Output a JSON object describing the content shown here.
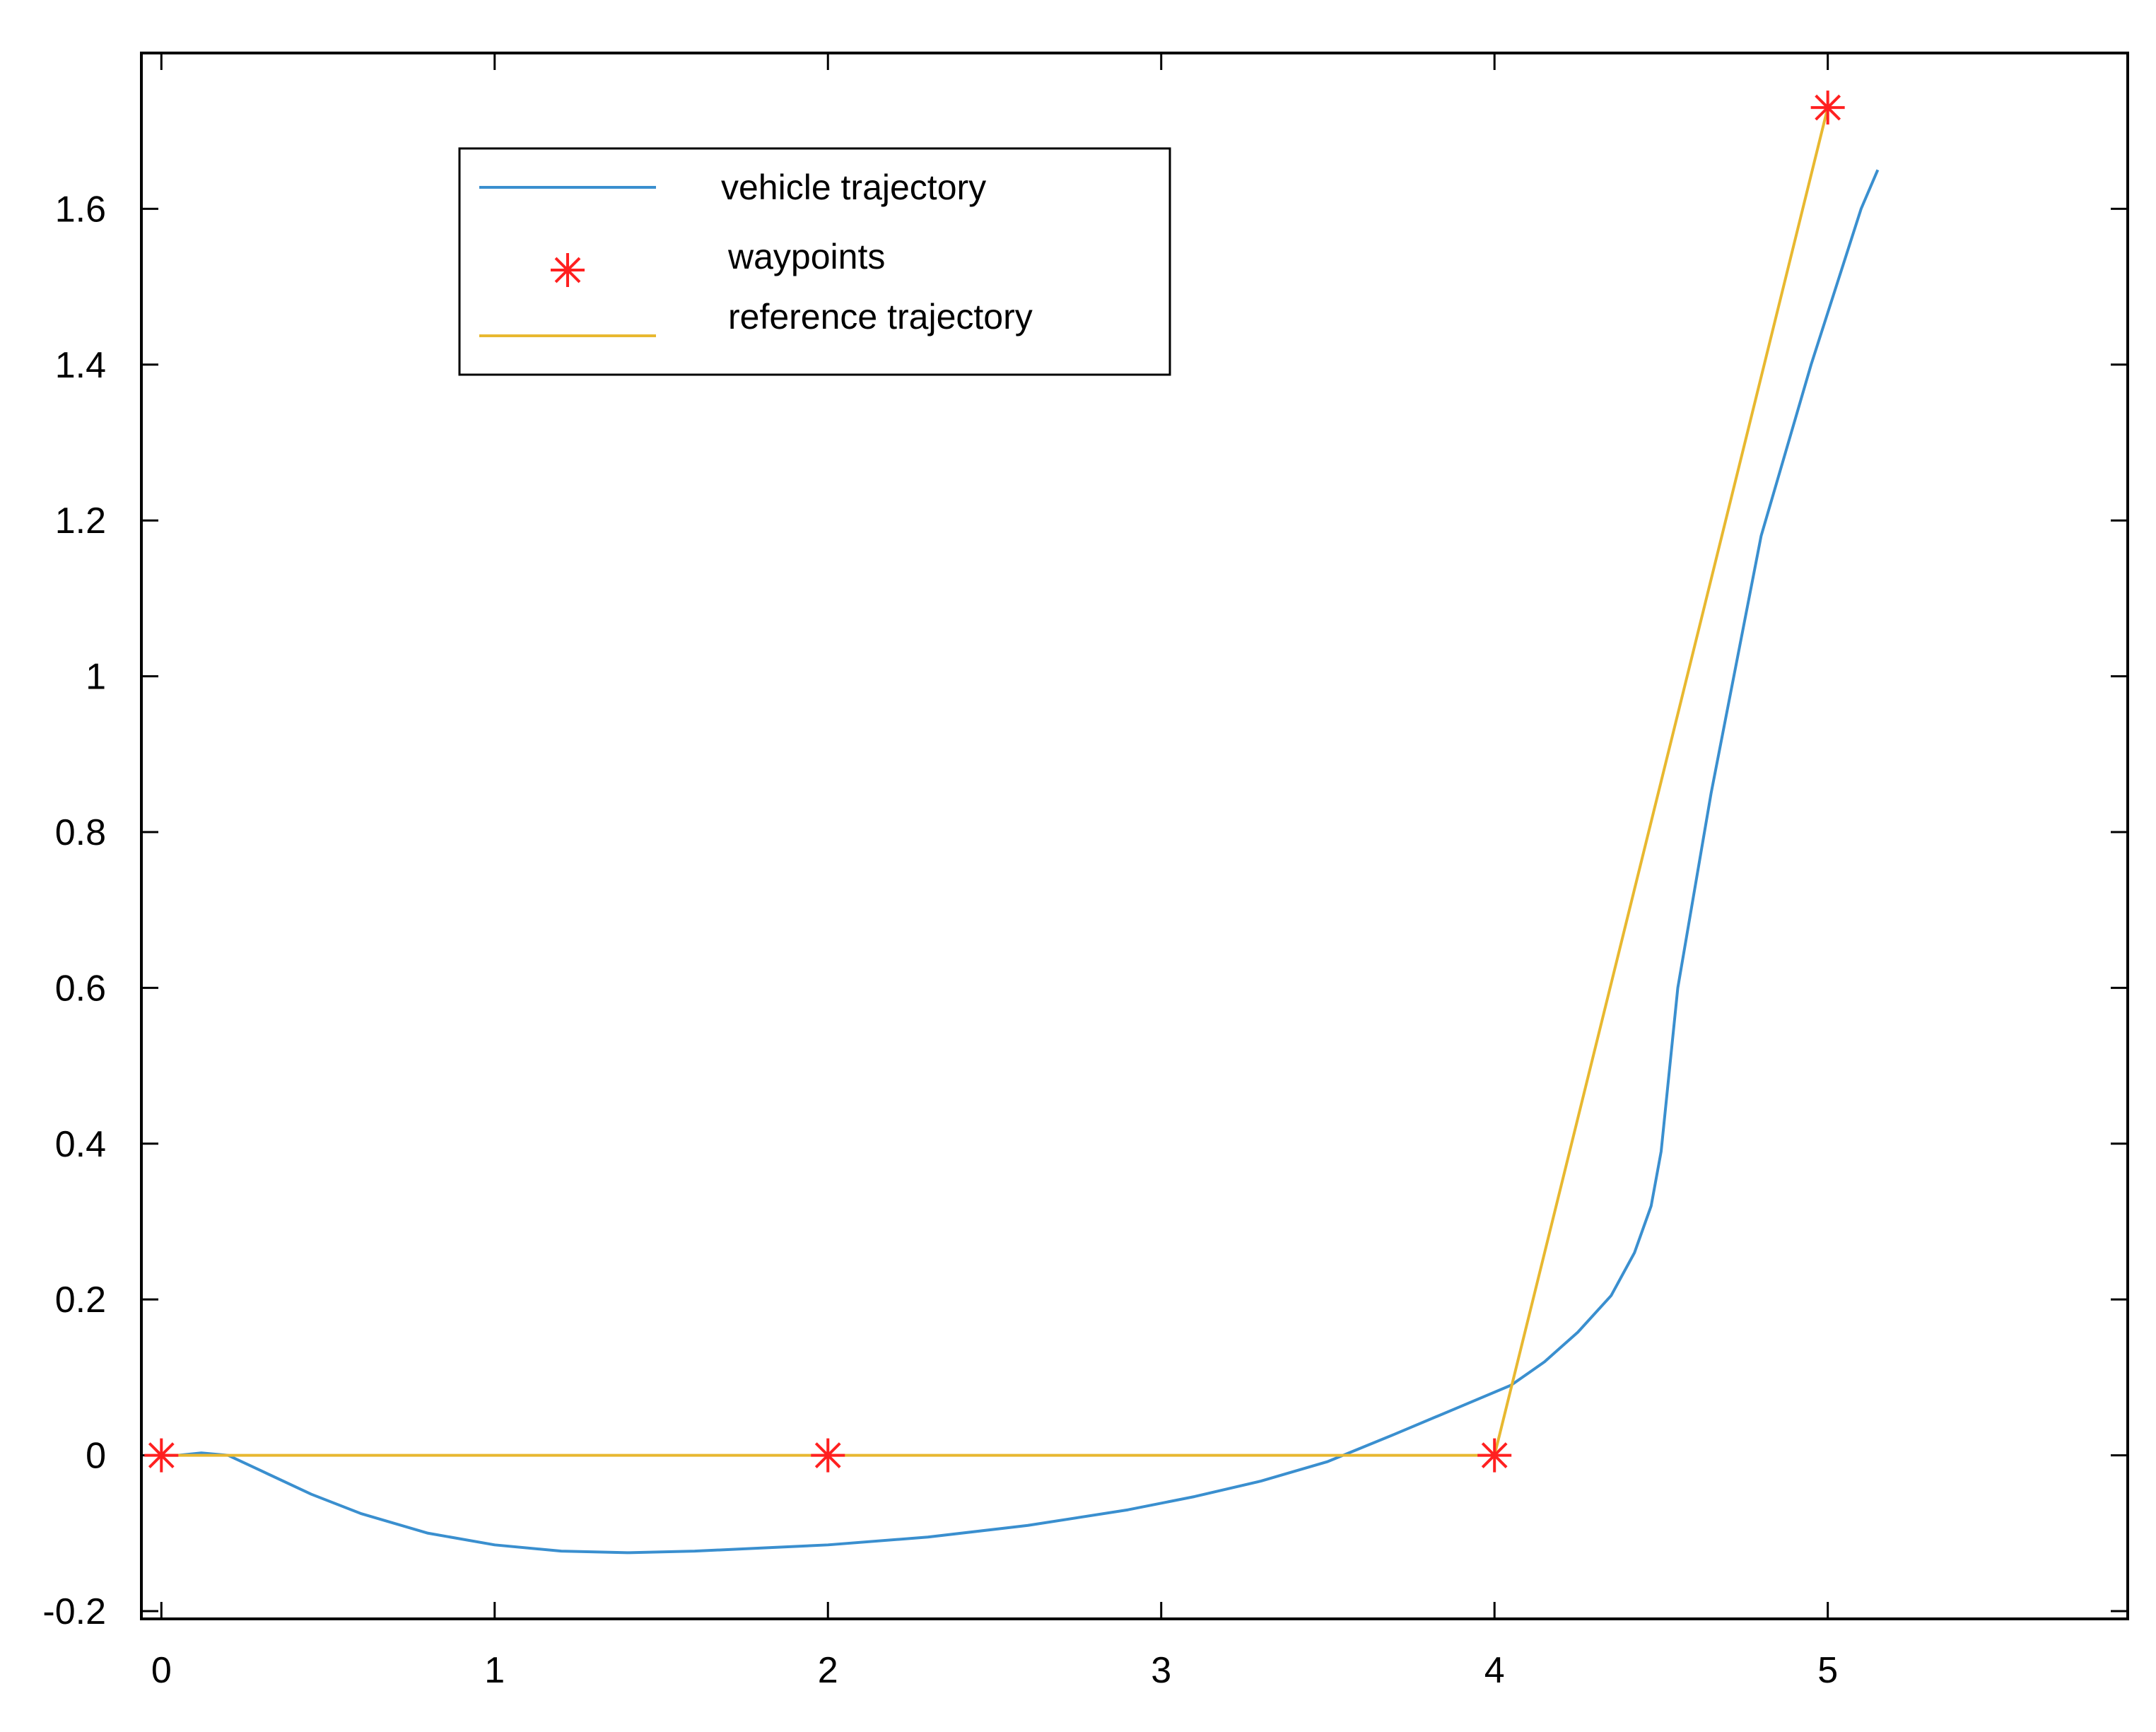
{
  "chart_data": {
    "type": "line",
    "title": "",
    "xlabel": "",
    "ylabel": "",
    "xlim": [
      -0.06,
      5.9
    ],
    "ylim": [
      -0.21,
      1.8
    ],
    "xticks": [
      0,
      1,
      2,
      3,
      4,
      5
    ],
    "xtick_labels": [
      "0",
      "1",
      "2",
      "3",
      "4",
      "5"
    ],
    "yticks": [
      -0.2,
      0,
      0.2,
      0.4,
      0.6,
      0.8,
      1,
      1.2,
      1.4,
      1.6
    ],
    "ytick_labels": [
      "-0.2",
      "0",
      "0.2",
      "0.4",
      "0.6",
      "0.8",
      "1",
      "1.2",
      "1.4",
      "1.6"
    ],
    "grid": false,
    "legend_position": "top-left",
    "series": [
      {
        "name": "vehicle trajectory",
        "kind": "line",
        "color": "#3a8fcf",
        "x": [
          0.0,
          0.05,
          0.12,
          0.2,
          0.3,
          0.45,
          0.6,
          0.8,
          1.0,
          1.2,
          1.4,
          1.6,
          1.8,
          2.0,
          2.3,
          2.6,
          2.9,
          3.1,
          3.3,
          3.5,
          3.7,
          3.9,
          4.05,
          4.15,
          4.25,
          4.35,
          4.42,
          4.47,
          4.5,
          4.55,
          4.65,
          4.8,
          4.95,
          5.1,
          5.15
        ],
        "y": [
          0.0,
          0.0,
          0.003,
          0.0,
          -0.02,
          -0.05,
          -0.075,
          -0.1,
          -0.115,
          -0.123,
          -0.125,
          -0.123,
          -0.119,
          -0.115,
          -0.105,
          -0.09,
          -0.07,
          -0.053,
          -0.033,
          -0.008,
          0.027,
          0.063,
          0.09,
          0.12,
          0.158,
          0.205,
          0.26,
          0.32,
          0.39,
          0.6,
          0.85,
          1.18,
          1.4,
          1.6,
          1.65
        ]
      },
      {
        "name": "waypoints",
        "kind": "scatter",
        "marker": "asterisk",
        "color": "#ff2020",
        "x": [
          0,
          2,
          4,
          5
        ],
        "y": [
          0,
          0,
          0,
          1.73
        ]
      },
      {
        "name": "reference trajectory",
        "kind": "line",
        "color": "#e8b830",
        "x": [
          0,
          2,
          4,
          5
        ],
        "y": [
          0,
          0,
          0,
          1.73
        ]
      }
    ]
  }
}
